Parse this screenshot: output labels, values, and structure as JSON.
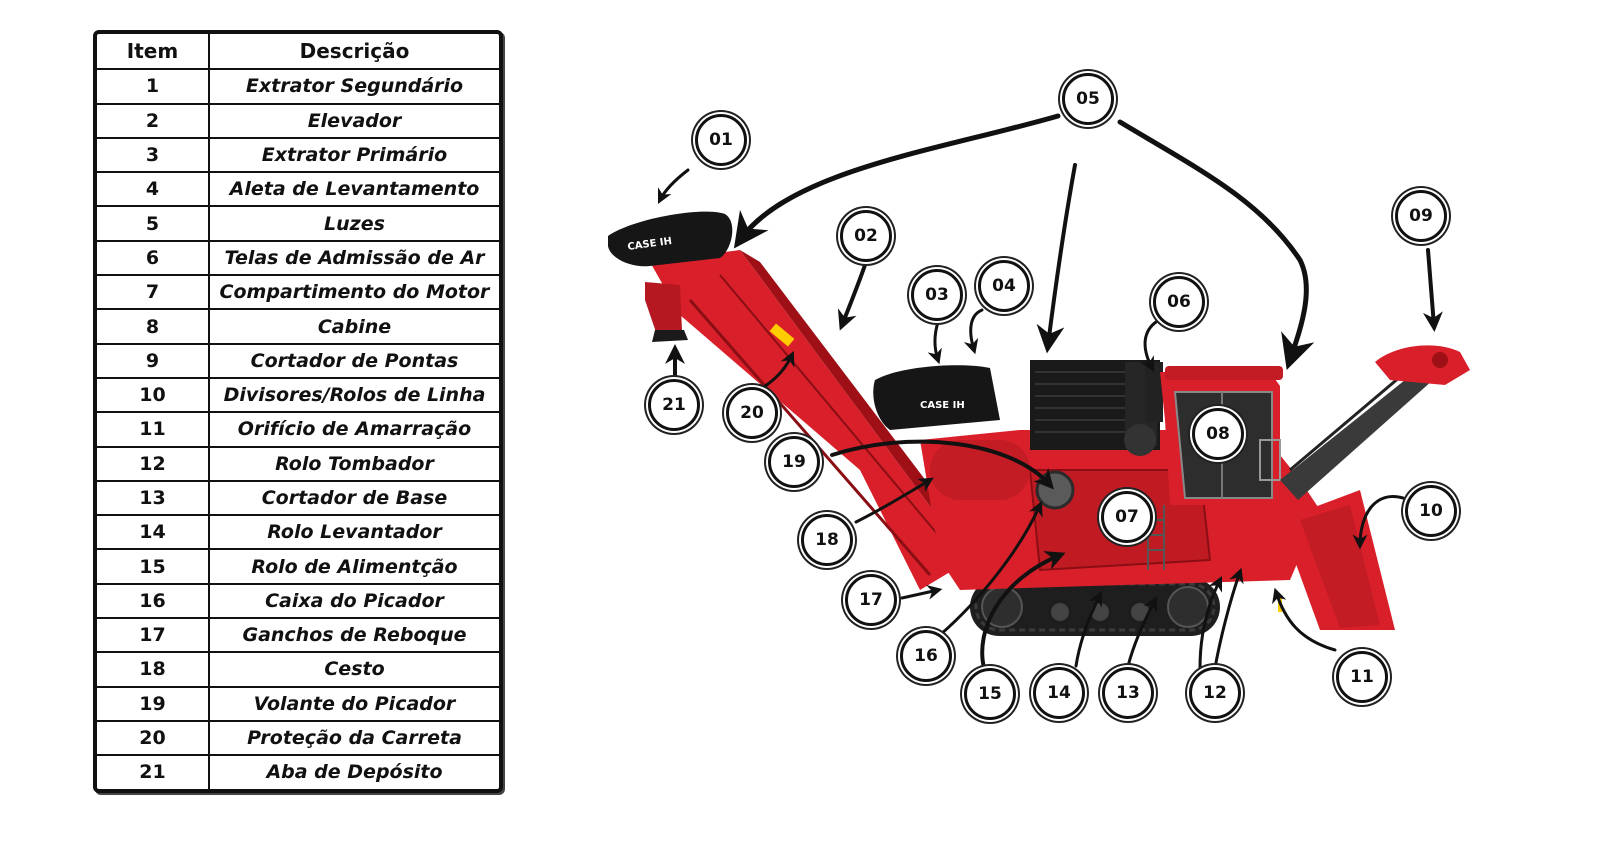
{
  "table": {
    "header": {
      "item": "Item",
      "description": "Descrição"
    },
    "rows": [
      {
        "item": "1",
        "description": "Extrator Segundário"
      },
      {
        "item": "2",
        "description": "Elevador"
      },
      {
        "item": "3",
        "description": "Extrator Primário"
      },
      {
        "item": "4",
        "description": "Aleta de Levantamento"
      },
      {
        "item": "5",
        "description": "Luzes"
      },
      {
        "item": "6",
        "description": "Telas de Admissão de Ar"
      },
      {
        "item": "7",
        "description": "Compartimento do Motor"
      },
      {
        "item": "8",
        "description": "Cabine"
      },
      {
        "item": "9",
        "description": "Cortador de Pontas"
      },
      {
        "item": "10",
        "description": "Divisores/Rolos de Linha"
      },
      {
        "item": "11",
        "description": "Orifício de Amarração"
      },
      {
        "item": "12",
        "description": "Rolo Tombador"
      },
      {
        "item": "13",
        "description": "Cortador de Base"
      },
      {
        "item": "14",
        "description": "Rolo Levantador"
      },
      {
        "item": "15",
        "description": "Rolo de Alimentção"
      },
      {
        "item": "16",
        "description": "Caixa do Picador"
      },
      {
        "item": "17",
        "description": "Ganchos de Reboque"
      },
      {
        "item": "18",
        "description": "Cesto"
      },
      {
        "item": "19",
        "description": "Volante do Picador"
      },
      {
        "item": "20",
        "description": "Proteção da Carreta"
      },
      {
        "item": "21",
        "description": "Aba de Depósito"
      }
    ]
  },
  "diagram": {
    "brand_text": "CASE IH",
    "colors": {
      "machine_red": "#d9202a",
      "dark_red": "#9e1016",
      "black": "#161616",
      "white": "#ffffff"
    },
    "callouts": {
      "c01": "01",
      "c02": "02",
      "c03": "03",
      "c04": "04",
      "c05": "05",
      "c06": "06",
      "c07": "07",
      "c08": "08",
      "c09": "09",
      "c10": "10",
      "c11": "11",
      "c12": "12",
      "c13": "13",
      "c14": "14",
      "c15": "15",
      "c16": "16",
      "c17": "17",
      "c18": "18",
      "c19": "19",
      "c20": "20",
      "c21": "21"
    }
  }
}
